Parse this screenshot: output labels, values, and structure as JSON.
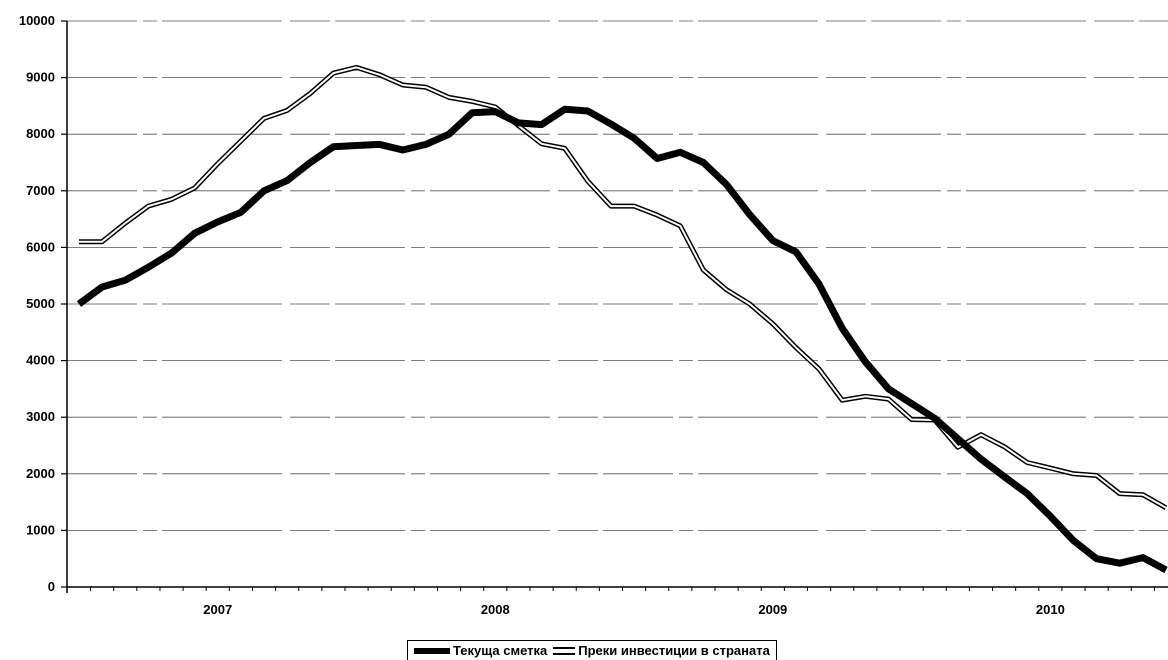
{
  "chart_data": {
    "type": "line",
    "title": "",
    "xlabel": "",
    "ylabel": "",
    "ylim": [
      0,
      10000
    ],
    "yticks": [
      0,
      1000,
      2000,
      3000,
      4000,
      5000,
      6000,
      7000,
      8000,
      9000,
      10000
    ],
    "x_tick_labels": [
      "2007",
      "2008",
      "2009",
      "2010"
    ],
    "grid": "horizontal",
    "legend_position": "bottom",
    "series": [
      {
        "name": "Текуща сметка",
        "style": "thick-black",
        "color": "#000000",
        "values": [
          5000,
          5300,
          5420,
          5650,
          5900,
          6250,
          6450,
          6620,
          7000,
          7180,
          7500,
          7780,
          7800,
          7820,
          7720,
          7820,
          8000,
          8380,
          8400,
          8200,
          8170,
          8440,
          8410,
          8180,
          7930,
          7570,
          7680,
          7500,
          7110,
          6580,
          6120,
          5920,
          5350,
          4570,
          3980,
          3500,
          3240,
          2980,
          2620,
          2260,
          1950,
          1650,
          1250,
          820,
          500,
          420,
          520,
          300
        ]
      },
      {
        "name": "Преки инвестиции в страната",
        "style": "double-line",
        "color": "#000000",
        "values": [
          6100,
          6100,
          6430,
          6730,
          6850,
          7050,
          7480,
          7880,
          8280,
          8420,
          8720,
          9080,
          9180,
          9050,
          8870,
          8830,
          8650,
          8580,
          8480,
          8150,
          7830,
          7750,
          7170,
          6730,
          6730,
          6570,
          6380,
          5600,
          5250,
          5000,
          4650,
          4230,
          3850,
          3300,
          3370,
          3320,
          2960,
          2950,
          2470,
          2690,
          2480,
          2200,
          2100,
          2000,
          1970,
          1650,
          1630,
          1400
        ]
      }
    ]
  }
}
